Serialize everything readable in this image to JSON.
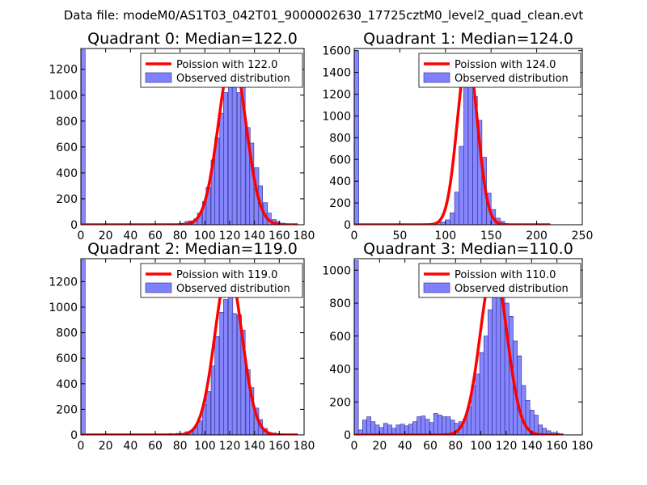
{
  "figure": {
    "suptitle": "Data file: modeM0/AS1T03_042T01_9000002630_17725cztM0_level2_quad_clean.evt"
  },
  "colors": {
    "bar_fill": "#8080ff",
    "bar_edge": "#2a2a8a",
    "poisson_line": "#ff0000",
    "axes": "#000000",
    "background": "#ffffff"
  },
  "chart_data": [
    {
      "type": "bar",
      "title": "Quadrant 0: Median=122.0",
      "xlim": [
        0,
        180
      ],
      "ylim": [
        0,
        1360
      ],
      "xticks": [
        0,
        20,
        40,
        60,
        80,
        100,
        120,
        140,
        160,
        180
      ],
      "yticks": [
        0,
        200,
        400,
        600,
        800,
        1000,
        1200
      ],
      "bin_width": 3.5,
      "bins": [
        [
          0,
          1350
        ],
        [
          70,
          8
        ],
        [
          77,
          6
        ],
        [
          80,
          12
        ],
        [
          84,
          25
        ],
        [
          87,
          30
        ],
        [
          91,
          45
        ],
        [
          94,
          90
        ],
        [
          98,
          180
        ],
        [
          101,
          290
        ],
        [
          105,
          500
        ],
        [
          108,
          670
        ],
        [
          112,
          860
        ],
        [
          115,
          1020
        ],
        [
          119,
          1070
        ],
        [
          122,
          1170
        ],
        [
          126,
          1020
        ],
        [
          129,
          1060
        ],
        [
          133,
          750
        ],
        [
          136,
          630
        ],
        [
          140,
          440
        ],
        [
          143,
          300
        ],
        [
          147,
          170
        ],
        [
          150,
          90
        ],
        [
          154,
          40
        ],
        [
          157,
          25
        ],
        [
          161,
          12
        ],
        [
          164,
          5
        ]
      ],
      "legend": [
        "Poission with 122.0",
        "Observed distribution"
      ],
      "poisson_mean": 122.0,
      "poisson_peak": 1300,
      "poisson_range": [
        0,
        175
      ]
    },
    {
      "type": "bar",
      "title": "Quadrant 1: Median=124.0",
      "xlim": [
        0,
        250
      ],
      "ylim": [
        0,
        1620
      ],
      "xticks": [
        0,
        50,
        100,
        150,
        200,
        250
      ],
      "yticks": [
        0,
        200,
        400,
        600,
        800,
        1000,
        1200,
        1400,
        1600
      ],
      "bin_width": 5,
      "bins": [
        [
          0,
          1600
        ],
        [
          65,
          5
        ],
        [
          75,
          10
        ],
        [
          85,
          15
        ],
        [
          90,
          20
        ],
        [
          95,
          25
        ],
        [
          100,
          45
        ],
        [
          105,
          110
        ],
        [
          110,
          300
        ],
        [
          115,
          720
        ],
        [
          120,
          1280
        ],
        [
          125,
          1500
        ],
        [
          130,
          1180
        ],
        [
          135,
          960
        ],
        [
          140,
          620
        ],
        [
          145,
          290
        ],
        [
          150,
          140
        ],
        [
          155,
          60
        ],
        [
          160,
          30
        ],
        [
          165,
          10
        ]
      ],
      "legend": [
        "Poission with 124.0",
        "Observed distribution"
      ],
      "poisson_mean": 124.0,
      "poisson_peak": 1550,
      "poisson_range": [
        0,
        215
      ]
    },
    {
      "type": "bar",
      "title": "Quadrant 2: Median=119.0",
      "xlim": [
        0,
        180
      ],
      "ylim": [
        0,
        1380
      ],
      "xticks": [
        0,
        20,
        40,
        60,
        80,
        100,
        120,
        140,
        160,
        180
      ],
      "yticks": [
        0,
        200,
        400,
        600,
        800,
        1000,
        1200
      ],
      "bin_width": 3.5,
      "bins": [
        [
          0,
          1370
        ],
        [
          70,
          10
        ],
        [
          77,
          12
        ],
        [
          84,
          25
        ],
        [
          87,
          30
        ],
        [
          91,
          60
        ],
        [
          94,
          110
        ],
        [
          98,
          240
        ],
        [
          101,
          340
        ],
        [
          105,
          540
        ],
        [
          108,
          770
        ],
        [
          112,
          960
        ],
        [
          115,
          1060
        ],
        [
          119,
          1150
        ],
        [
          122,
          950
        ],
        [
          126,
          940
        ],
        [
          129,
          820
        ],
        [
          133,
          510
        ],
        [
          136,
          370
        ],
        [
          140,
          210
        ],
        [
          143,
          120
        ],
        [
          147,
          50
        ],
        [
          150,
          20
        ],
        [
          154,
          15
        ],
        [
          157,
          5
        ]
      ],
      "legend": [
        "Poission with 119.0",
        "Observed distribution"
      ],
      "poisson_mean": 119.0,
      "poisson_peak": 1300,
      "poisson_range": [
        0,
        175
      ]
    },
    {
      "type": "bar",
      "title": "Quadrant 3: Median=110.0",
      "xlim": [
        0,
        180
      ],
      "ylim": [
        0,
        1070
      ],
      "xticks": [
        0,
        20,
        40,
        60,
        80,
        100,
        120,
        140,
        160,
        180
      ],
      "yticks": [
        0,
        200,
        400,
        600,
        800,
        1000
      ],
      "bin_width": 3.3,
      "bins": [
        [
          0,
          1060
        ],
        [
          3.3,
          30
        ],
        [
          6.6,
          90
        ],
        [
          9.9,
          110
        ],
        [
          13.2,
          80
        ],
        [
          16.5,
          60
        ],
        [
          19.8,
          45
        ],
        [
          23.1,
          70
        ],
        [
          26.4,
          60
        ],
        [
          29.7,
          40
        ],
        [
          33,
          60
        ],
        [
          36.3,
          65
        ],
        [
          39.6,
          55
        ],
        [
          42.9,
          65
        ],
        [
          46.2,
          80
        ],
        [
          49.5,
          110
        ],
        [
          52.8,
          115
        ],
        [
          56.1,
          95
        ],
        [
          59.4,
          75
        ],
        [
          62.7,
          130
        ],
        [
          66,
          120
        ],
        [
          69.3,
          110
        ],
        [
          72.6,
          110
        ],
        [
          75.9,
          90
        ],
        [
          79.2,
          70
        ],
        [
          82.5,
          80
        ],
        [
          85.8,
          95
        ],
        [
          89.1,
          170
        ],
        [
          92.4,
          300
        ],
        [
          95.7,
          370
        ],
        [
          99,
          500
        ],
        [
          102.3,
          600
        ],
        [
          105.6,
          760
        ],
        [
          108.9,
          900
        ],
        [
          112.2,
          990
        ],
        [
          115.5,
          1000
        ],
        [
          118.8,
          800
        ],
        [
          122.1,
          720
        ],
        [
          125.4,
          570
        ],
        [
          128.7,
          480
        ],
        [
          132,
          300
        ],
        [
          135.3,
          210
        ],
        [
          138.6,
          150
        ],
        [
          141.9,
          120
        ],
        [
          145.2,
          60
        ],
        [
          148.5,
          40
        ],
        [
          151.8,
          25
        ],
        [
          155.1,
          15
        ],
        [
          158.4,
          10
        ],
        [
          161.7,
          5
        ]
      ],
      "legend": [
        "Poission with 110.0",
        "Observed distribution"
      ],
      "poisson_mean": 110.0,
      "poisson_peak": 1020,
      "poisson_range": [
        0,
        165
      ]
    }
  ]
}
